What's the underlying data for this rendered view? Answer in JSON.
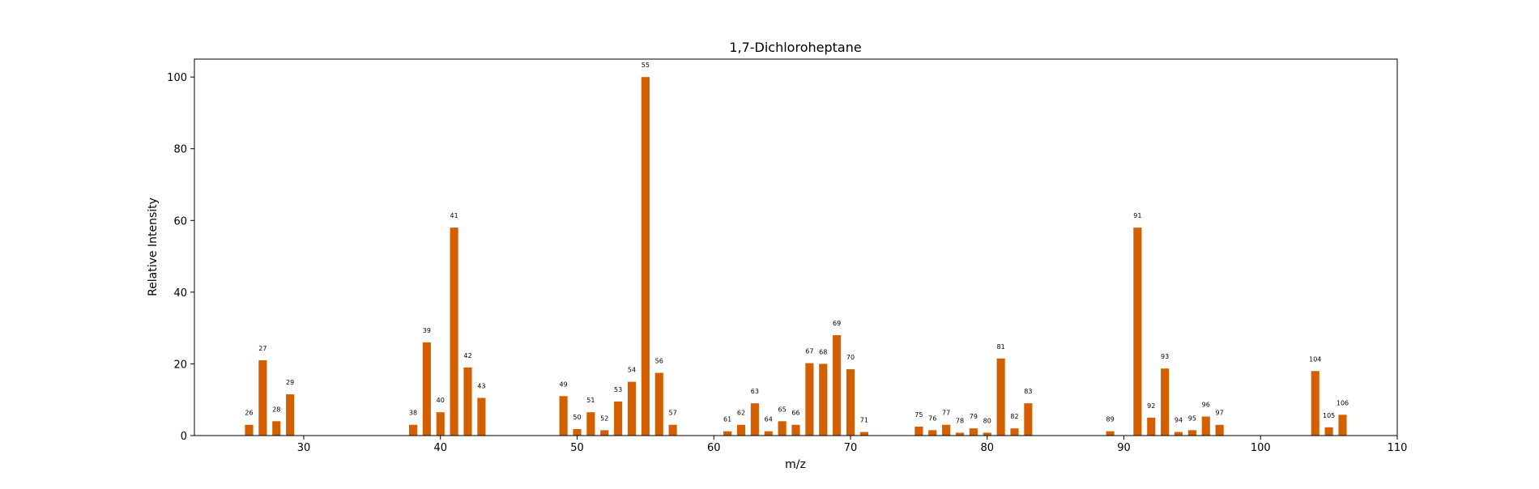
{
  "chart_data": {
    "type": "bar",
    "title": "1,7-Dichloroheptane",
    "xlabel": "m/z",
    "ylabel": "Relative Intensity",
    "xlim": [
      22,
      110
    ],
    "ylim": [
      0,
      105
    ],
    "xticks": [
      30,
      40,
      50,
      60,
      70,
      80,
      90,
      100,
      110
    ],
    "yticks": [
      0,
      20,
      40,
      60,
      80,
      100
    ],
    "grid": false,
    "bar_color": "#D45F00",
    "x": [
      26,
      27,
      28,
      29,
      38,
      39,
      40,
      41,
      42,
      43,
      49,
      50,
      51,
      52,
      53,
      54,
      55,
      56,
      57,
      61,
      62,
      63,
      64,
      65,
      66,
      67,
      68,
      69,
      70,
      71,
      75,
      76,
      77,
      78,
      79,
      80,
      81,
      82,
      83,
      89,
      91,
      92,
      93,
      94,
      95,
      96,
      97,
      104,
      105,
      106
    ],
    "values": [
      3,
      21,
      4,
      11.5,
      3,
      26,
      6.5,
      58,
      19,
      10.5,
      11,
      1.8,
      6.5,
      1.5,
      9.5,
      15,
      100,
      17.5,
      3,
      1.2,
      3,
      9,
      1.2,
      4,
      3,
      20.2,
      20,
      28,
      18.5,
      1,
      2.5,
      1.5,
      3,
      0.8,
      2,
      0.8,
      21.5,
      2,
      9,
      1.2,
      58,
      5,
      18.7,
      1,
      1.5,
      5.3,
      3,
      18,
      2.3,
      5.8
    ],
    "data_labels": [
      "26",
      "27",
      "28",
      "29",
      "38",
      "39",
      "40",
      "41",
      "42",
      "43",
      "49",
      "50",
      "51",
      "52",
      "53",
      "54",
      "55",
      "56",
      "57",
      "61",
      "62",
      "63",
      "64",
      "65",
      "66",
      "67",
      "68",
      "69",
      "70",
      "71",
      "75",
      "76",
      "77",
      "78",
      "79",
      "80",
      "81",
      "82",
      "83",
      "89",
      "91",
      "92",
      "93",
      "94",
      "95",
      "96",
      "97",
      "104",
      "105",
      "106"
    ]
  }
}
